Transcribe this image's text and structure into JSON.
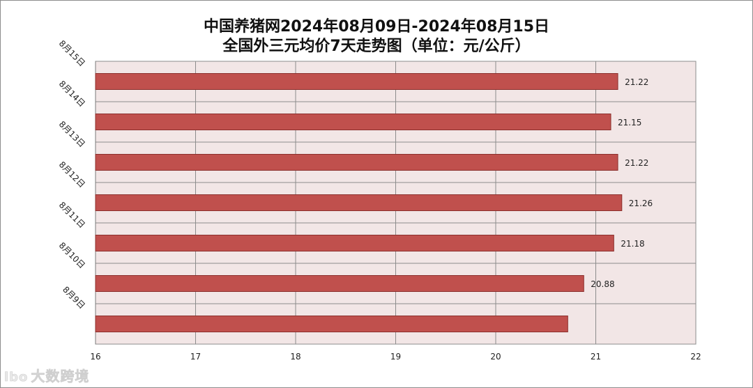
{
  "title_line1": "中国养猪网2024年08月09日-2024年08月15日",
  "title_line2": "全国外三元均价7天走势图（单位：元/公斤）",
  "watermark": {
    "logo": "lbo",
    "text": "大数跨境"
  },
  "chart_data": {
    "type": "bar",
    "orientation": "horizontal",
    "categories": [
      "8月15日",
      "8月14日",
      "8月13日",
      "8月12日",
      "8月11日",
      "8月10日",
      "8月9日"
    ],
    "values": [
      21.22,
      21.15,
      21.22,
      21.26,
      21.18,
      20.88,
      20.72
    ],
    "data_labels": [
      "21.22",
      "21.15",
      "21.22",
      "21.26",
      "21.18",
      "20.88",
      ""
    ],
    "xlim": [
      16,
      22
    ],
    "xticks": [
      16,
      17,
      18,
      19,
      20,
      21,
      22
    ],
    "grid": true,
    "bar_color": "#c0504d",
    "plot_background": "#f2e6e6"
  }
}
